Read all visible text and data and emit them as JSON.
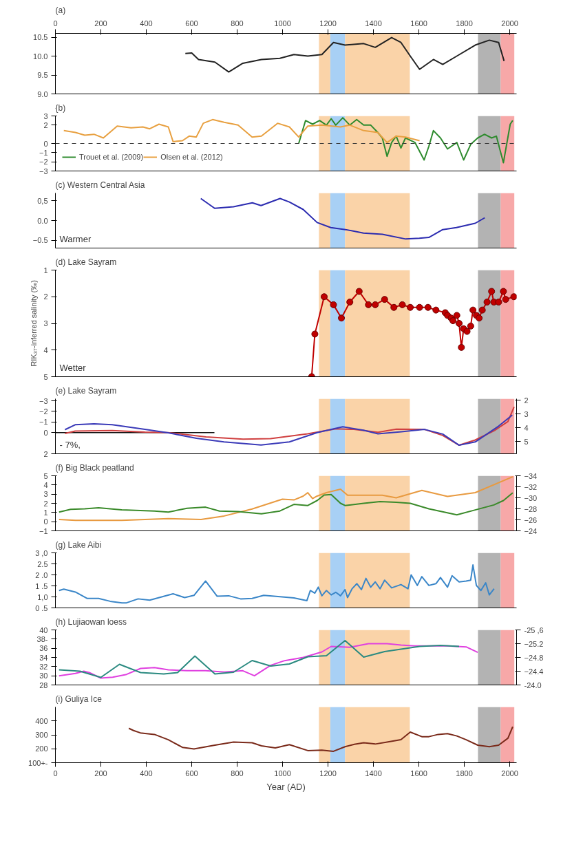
{
  "chart_data": [
    {
      "type": "line",
      "title": "(a)",
      "xlim": [
        0,
        2030
      ],
      "x2lim": [
        0,
        2030
      ],
      "x2ticks": [
        0,
        200,
        400,
        600,
        800,
        1000,
        1200,
        1400,
        1600,
        1800,
        2000
      ],
      "tick_labels": "y",
      "ylim": [
        9.0,
        10.6
      ],
      "yticks": [
        {
          "value": 9.0,
          "label": "9.0"
        },
        9.5,
        {
          "value": 10.0,
          "label": "10.0"
        },
        {
          "value": 10.5,
          "label": "10.5"
        }
      ],
      "grid": false,
      "bands": [
        {
          "axis": "x",
          "from": 1160,
          "to": 1210,
          "color": "#fad3a8"
        },
        {
          "axis": "x",
          "from": 1210,
          "to": 1275,
          "color": "#a8d0f5"
        },
        {
          "axis": "x",
          "from": 1275,
          "to": 1560,
          "color": "#fad3a8"
        },
        {
          "axis": "x",
          "from": 1860,
          "to": 1960,
          "color": "#b3b3b3"
        },
        {
          "axis": "x",
          "from": 1960,
          "to": 2020,
          "color": "#f7a8a8"
        }
      ],
      "series": [
        {
          "color": "#222222",
          "x": [
            572,
            600,
            630,
            702,
            763,
            825,
            907,
            988,
            1050,
            1111,
            1173,
            1224,
            1275,
            1357,
            1408,
            1480,
            1521,
            1562,
            1603,
            1664,
            1705,
            1767,
            1848,
            1910,
            1951,
            1975
          ],
          "values": [
            10.07,
            10.08,
            9.91,
            9.84,
            9.58,
            9.81,
            9.91,
            9.94,
            10.04,
            10.0,
            10.04,
            10.36,
            10.29,
            10.33,
            10.23,
            10.49,
            10.36,
            10.0,
            9.65,
            9.91,
            9.78,
            10.0,
            10.29,
            10.42,
            10.36,
            9.87
          ]
        }
      ]
    },
    {
      "type": "line",
      "title": "{b)",
      "xlim": [
        0,
        2030
      ],
      "tick_labels": "y",
      "ylim": [
        -3,
        3
      ],
      "yticks": [
        -3,
        -2,
        -1,
        0,
        2,
        3
      ],
      "grid": false,
      "legend": "bottom left",
      "ref_lines": [
        {
          "axis": "y",
          "value": 0,
          "line_style": "dashed",
          "color": "#333333"
        }
      ],
      "bands": [
        {
          "axis": "x",
          "from": 1160,
          "to": 1210,
          "color": "#fad3a8"
        },
        {
          "axis": "x",
          "from": 1210,
          "to": 1275,
          "color": "#a8d0f5"
        },
        {
          "axis": "x",
          "from": 1275,
          "to": 1560,
          "color": "#fad3a8"
        },
        {
          "axis": "x",
          "from": 1860,
          "to": 1960,
          "color": "#b3b3b3"
        },
        {
          "axis": "x",
          "from": 1960,
          "to": 2020,
          "color": "#f7a8a8"
        }
      ],
      "series": [
        {
          "name": "Trouet et al. (2009)",
          "color": "#2e8b2e",
          "x": [
            1071,
            1101,
            1132,
            1163,
            1193,
            1214,
            1234,
            1265,
            1296,
            1326,
            1357,
            1388,
            1419,
            1439,
            1460,
            1480,
            1500,
            1521,
            1541,
            1583,
            1623,
            1644,
            1664,
            1695,
            1726,
            1767,
            1797,
            1828,
            1859,
            1889,
            1920,
            1941,
            1972,
            2002,
            2013
          ],
          "values": [
            0,
            2.5,
            2.1,
            2.5,
            2.0,
            2.7,
            2.0,
            2.8,
            2.0,
            2.6,
            2.0,
            2.0,
            1.2,
            0.6,
            -1.4,
            0.1,
            0.8,
            -0.5,
            0.6,
            0.1,
            -1.8,
            -0.3,
            1.4,
            0.6,
            -0.6,
            0.1,
            -1.8,
            -0.1,
            0.6,
            1.0,
            0.6,
            0.8,
            -2.1,
            2.1,
            2.5
          ]
        },
        {
          "name": "Olsen et al. (2012)",
          "color": "#e8a040",
          "x": [
            37,
            88,
            129,
            170,
            211,
            272,
            333,
            385,
            415,
            456,
            497,
            518,
            559,
            589,
            620,
            651,
            692,
            743,
            804,
            866,
            907,
            978,
            1030,
            1071,
            1111,
            1173,
            1255,
            1296,
            1357,
            1419,
            1460,
            1500,
            1541,
            1603
          ],
          "values": [
            1.4,
            1.2,
            0.9,
            1.0,
            0.6,
            1.9,
            1.7,
            1.8,
            1.6,
            2.1,
            1.8,
            0.2,
            0.3,
            0.8,
            0.7,
            2.2,
            2.6,
            2.3,
            2.0,
            0.7,
            0.8,
            2.2,
            1.8,
            0.7,
            1.9,
            2.0,
            1.8,
            2.0,
            1.4,
            1.2,
            0.1,
            0.8,
            0.7,
            0.3
          ]
        }
      ]
    },
    {
      "type": "line",
      "title": "(c) Western Central Asia",
      "xlim": [
        0,
        2030
      ],
      "tick_labels": "y",
      "ylim": [
        -0.7,
        0.7
      ],
      "yticks": [
        {
          "value": 0.5,
          "label": "0,5"
        },
        {
          "value": 0.0,
          "label": "0.0"
        },
        -0.5
      ],
      "grid": false,
      "annotations": [
        "Warmer"
      ],
      "bands": [
        {
          "axis": "x",
          "from": 1160,
          "to": 1210,
          "color": "#fad3a8"
        },
        {
          "axis": "x",
          "from": 1210,
          "to": 1275,
          "color": "#a8d0f5"
        },
        {
          "axis": "x",
          "from": 1275,
          "to": 1560,
          "color": "#fad3a8"
        },
        {
          "axis": "x",
          "from": 1860,
          "to": 1960,
          "color": "#b3b3b3"
        },
        {
          "axis": "x",
          "from": 1960,
          "to": 2020,
          "color": "#f7a8a8"
        }
      ],
      "series": [
        {
          "color": "#2b2bb0",
          "x": [
            640,
            701,
            784,
            867,
            905,
            989,
            1030,
            1091,
            1152,
            1212,
            1277,
            1356,
            1439,
            1542,
            1602,
            1644,
            1705,
            1765,
            1848,
            1890
          ],
          "values": [
            0.56,
            0.31,
            0.35,
            0.45,
            0.38,
            0.56,
            0.47,
            0.28,
            -0.05,
            -0.18,
            -0.23,
            -0.32,
            -0.35,
            -0.47,
            -0.45,
            -0.43,
            -0.23,
            -0.18,
            -0.07,
            0.07
          ]
        }
      ]
    },
    {
      "type": "line",
      "title": "(d) Lake Sayram",
      "ylabel": "RIK₃₇-inferred salinity (‰)",
      "xlim": [
        0,
        2030
      ],
      "tick_labels": "y",
      "ylim": [
        5,
        1
      ],
      "yticks": [
        1,
        2,
        3,
        4,
        5
      ],
      "grid": false,
      "marker": "circle",
      "annotations": [
        "Wetter"
      ],
      "bands": [
        {
          "axis": "x",
          "from": 1160,
          "to": 1210,
          "color": "#fad3a8"
        },
        {
          "axis": "x",
          "from": 1210,
          "to": 1275,
          "color": "#a8d0f5"
        },
        {
          "axis": "x",
          "from": 1275,
          "to": 1560,
          "color": "#fad3a8"
        },
        {
          "axis": "x",
          "from": 1860,
          "to": 1960,
          "color": "#b3b3b3"
        },
        {
          "axis": "x",
          "from": 1960,
          "to": 2020,
          "color": "#f7a8a8"
        }
      ],
      "series": [
        {
          "color": "#c00000",
          "x": [
            1128,
            1142,
            1183,
            1224,
            1259,
            1296,
            1337,
            1378,
            1408,
            1449,
            1490,
            1527,
            1562,
            1603,
            1640,
            1675,
            1716,
            1726,
            1742,
            1750,
            1767,
            1777,
            1787,
            1797,
            1812,
            1828,
            1838,
            1853,
            1865,
            1879,
            1900,
            1920,
            1930,
            1951,
            1972,
            1982,
            2018
          ],
          "values": [
            5.0,
            3.4,
            2.0,
            2.3,
            2.8,
            2.2,
            1.8,
            2.3,
            2.3,
            2.1,
            2.4,
            2.3,
            2.4,
            2.4,
            2.4,
            2.5,
            2.6,
            2.7,
            2.8,
            2.9,
            2.7,
            3.0,
            3.9,
            3.2,
            3.3,
            3.1,
            2.5,
            2.7,
            2.8,
            2.5,
            2.2,
            1.8,
            2.2,
            2.2,
            1.8,
            2.1,
            2.0
          ]
        }
      ]
    },
    {
      "type": "line",
      "title": "(e) Lake Sayram",
      "xlim": [
        0,
        2030
      ],
      "tick_labels": "y",
      "ylim": [
        2.0,
        -3.2
      ],
      "yticks": [
        -3,
        -2,
        -1,
        0,
        2
      ],
      "y2lim": [
        5.9,
        1.9
      ],
      "y2ticks": [
        2,
        3,
        4,
        5
      ],
      "grid": false,
      "annotations": [
        "- 7%,"
      ],
      "bands": [
        {
          "axis": "x",
          "from": 1160,
          "to": 1210,
          "color": "#fad3a8"
        },
        {
          "axis": "x",
          "from": 1210,
          "to": 1275,
          "color": "#a8d0f5"
        },
        {
          "axis": "x",
          "from": 1275,
          "to": 1560,
          "color": "#fad3a8"
        },
        {
          "axis": "x",
          "from": 1860,
          "to": 1960,
          "color": "#b3b3b3"
        },
        {
          "axis": "x",
          "from": 1960,
          "to": 2020,
          "color": "#f7a8a8"
        }
      ],
      "series": [
        {
          "color": "#111111",
          "x": [
            0,
            700
          ],
          "values": [
            0,
            0
          ]
        },
        {
          "color": "#d04040",
          "x": [
            42,
            87,
            250,
            394,
            496,
            663,
            826,
            947,
            1110,
            1235,
            1314,
            1420,
            1500,
            1625,
            1705,
            1777,
            1848,
            1932,
            1992,
            2019
          ],
          "values": [
            0.08,
            -0.14,
            -0.19,
            -0.05,
            0,
            0.41,
            0.62,
            0.57,
            0.11,
            -0.35,
            -0.3,
            -0.03,
            -0.32,
            -0.3,
            0.27,
            1.19,
            0.7,
            -0.19,
            -1.05,
            -2.43
          ]
        },
        {
          "color": "#3a3ab8",
          "axis": "y2",
          "x": [
            42,
            87,
            170,
            250,
            394,
            496,
            621,
            742,
            905,
            1030,
            1152,
            1265,
            1356,
            1420,
            1523,
            1625,
            1705,
            1777,
            1848,
            1951,
            2011
          ],
          "values": [
            4.15,
            3.79,
            3.72,
            3.79,
            4.13,
            4.38,
            4.77,
            5.04,
            5.26,
            5.04,
            4.36,
            3.94,
            4.19,
            4.45,
            4.3,
            4.13,
            4.47,
            5.28,
            5.04,
            3.89,
            3.09
          ]
        }
      ]
    },
    {
      "type": "line",
      "title": "(f) Big Black peatland",
      "xlim": [
        0,
        2030
      ],
      "tick_labels": "y",
      "ylim": [
        -1,
        5
      ],
      "yticks": [
        -1,
        0,
        1,
        2,
        3,
        4,
        5
      ],
      "y2lim": [
        -24,
        -34
      ],
      "y2ticks": [
        -34,
        -32,
        -30,
        -28,
        -26,
        -24
      ],
      "grid": false,
      "bands": [
        {
          "axis": "x",
          "from": 1160,
          "to": 1210,
          "color": "#fad3a8"
        },
        {
          "axis": "x",
          "from": 1210,
          "to": 1275,
          "color": "#a8d0f5"
        },
        {
          "axis": "x",
          "from": 1275,
          "to": 1560,
          "color": "#fad3a8"
        },
        {
          "axis": "x",
          "from": 1860,
          "to": 1960,
          "color": "#b3b3b3"
        },
        {
          "axis": "x",
          "from": 1960,
          "to": 2020,
          "color": "#f7a8a8"
        }
      ],
      "series": [
        {
          "color": "#e89a40",
          "x": [
            16,
            88,
            292,
            497,
            641,
            743,
            866,
            999,
            1050,
            1091,
            1111,
            1132,
            1152,
            1193,
            1255,
            1286,
            1439,
            1500,
            1613,
            1726,
            1848,
            2013
          ],
          "values": [
            0.24,
            0.15,
            0.15,
            0.34,
            0.24,
            0.62,
            1.38,
            2.45,
            2.37,
            2.79,
            3.16,
            2.51,
            2.79,
            3.16,
            3.54,
            2.88,
            2.88,
            2.6,
            3.41,
            2.75,
            3.16,
            4.9
          ]
        },
        {
          "color": "#3a8a2a",
          "axis": "y2",
          "x": [
            16,
            67,
            129,
            190,
            292,
            374,
            436,
            497,
            579,
            661,
            722,
            804,
            907,
            988,
            1050,
            1111,
            1152,
            1183,
            1214,
            1255,
            1275,
            1357,
            1429,
            1500,
            1562,
            1644,
            1767,
            1848,
            1930,
            1972,
            2013
          ],
          "values": [
            -27.4,
            -27.9,
            -28.0,
            -28.2,
            -27.8,
            -27.7,
            -27.6,
            -27.4,
            -28.1,
            -28.3,
            -27.6,
            -27.5,
            -27.1,
            -27.6,
            -28.8,
            -28.6,
            -29.5,
            -30.5,
            -30.6,
            -29.0,
            -28.6,
            -29.0,
            -29.3,
            -29.2,
            -29.0,
            -28.0,
            -26.9,
            -27.8,
            -28.7,
            -29.5,
            -30.9
          ]
        }
      ]
    },
    {
      "type": "line",
      "title": "(g) Lake Aibi",
      "xlim": [
        0,
        2030
      ],
      "tick_labels": "y",
      "ylim": [
        0.5,
        3.0
      ],
      "yticks": [
        {
          "value": 0.5,
          "label": "0 .5"
        },
        {
          "value": 1.0,
          "label": "1,0"
        },
        {
          "value": 1.5,
          "label": "1 .5"
        },
        {
          "value": 2.0,
          "label": "2 .0"
        },
        {
          "value": 2.5,
          "label": "2.5"
        },
        {
          "value": 3.0,
          "label": "3 ,0"
        }
      ],
      "grid": false,
      "bands": [
        {
          "axis": "x",
          "from": 1160,
          "to": 1210,
          "color": "#fad3a8"
        },
        {
          "axis": "x",
          "from": 1210,
          "to": 1275,
          "color": "#a8d0f5"
        },
        {
          "axis": "x",
          "from": 1275,
          "to": 1560,
          "color": "#fad3a8"
        },
        {
          "axis": "x",
          "from": 1860,
          "to": 1960,
          "color": "#b3b3b3"
        },
        {
          "axis": "x",
          "from": 1960,
          "to": 2020,
          "color": "#f7a8a8"
        }
      ],
      "series": [
        {
          "color": "#3a86c8",
          "x": [
            16,
            37,
            88,
            139,
            190,
            241,
            293,
            313,
            364,
            415,
            518,
            569,
            610,
            661,
            712,
            763,
            815,
            866,
            917,
            989,
            1050,
            1107,
            1122,
            1142,
            1157,
            1173,
            1193,
            1214,
            1234,
            1255,
            1275,
            1286,
            1306,
            1327,
            1347,
            1367,
            1388,
            1408,
            1429,
            1449,
            1480,
            1521,
            1552,
            1566,
            1593,
            1613,
            1644,
            1675,
            1695,
            1726,
            1746,
            1777,
            1808,
            1828,
            1838,
            1853,
            1873,
            1894,
            1910,
            1931
          ],
          "values": [
            1.29,
            1.35,
            1.22,
            0.93,
            0.93,
            0.8,
            0.73,
            0.73,
            0.91,
            0.85,
            1.14,
            0.97,
            1.07,
            1.72,
            1.03,
            1.05,
            0.91,
            0.93,
            1.07,
            1.01,
            0.95,
            0.83,
            1.29,
            1.17,
            1.44,
            1.05,
            1.29,
            1.09,
            1.21,
            1.05,
            1.33,
            0.97,
            1.37,
            1.6,
            1.33,
            1.84,
            1.44,
            1.68,
            1.37,
            1.76,
            1.41,
            1.56,
            1.37,
            2.0,
            1.52,
            1.92,
            1.52,
            1.6,
            1.88,
            1.44,
            1.96,
            1.68,
            1.72,
            1.76,
            2.45,
            1.52,
            1.29,
            1.64,
            1.09,
            1.37
          ]
        }
      ]
    },
    {
      "type": "line",
      "title": "(h) Lujiaowan loess",
      "xlim": [
        0,
        2030
      ],
      "tick_labels": "y",
      "ylim": [
        28,
        40
      ],
      "yticks": [
        28,
        30,
        32,
        34,
        36,
        {
          "value": 38,
          "label": "38-"
        },
        40
      ],
      "y2lim": [
        -24.0,
        -25.6
      ],
      "y2ticks": [
        {
          "value": -24.0,
          "label": "-24.0"
        },
        -24.4,
        -24.8,
        -25.2,
        {
          "value": -25.6,
          "label": "-25 ,6"
        }
      ],
      "grid": false,
      "bands": [
        {
          "axis": "x",
          "from": 1160,
          "to": 1210,
          "color": "#fad3a8"
        },
        {
          "axis": "x",
          "from": 1210,
          "to": 1275,
          "color": "#a8d0f5"
        },
        {
          "axis": "x",
          "from": 1275,
          "to": 1560,
          "color": "#fad3a8"
        },
        {
          "axis": "x",
          "from": 1860,
          "to": 1960,
          "color": "#b3b3b3"
        },
        {
          "axis": "x",
          "from": 1960,
          "to": 2020,
          "color": "#f7a8a8"
        }
      ],
      "series": [
        {
          "color": "#e040e0",
          "x": [
            16,
            88,
            125,
            149,
            200,
            252,
            313,
            375,
            436,
            497,
            579,
            661,
            743,
            825,
            876,
            948,
            1009,
            1091,
            1173,
            1214,
            1296,
            1378,
            1460,
            1521,
            1582,
            1726,
            1808,
            1859
          ],
          "values": [
            30.0,
            30.5,
            31.0,
            30.7,
            29.5,
            29.7,
            30.3,
            31.6,
            31.8,
            31.3,
            31.1,
            31.1,
            30.8,
            31.1,
            30.0,
            32.3,
            33.3,
            34.0,
            35.2,
            36.4,
            36.2,
            37.0,
            37.0,
            36.7,
            36.5,
            36.5,
            36.3,
            35.1
          ]
        },
        {
          "color": "#2a8a80",
          "axis": "y2",
          "x": [
            16,
            108,
            200,
            282,
            375,
            477,
            538,
            614,
            702,
            784,
            866,
            948,
            1030,
            1111,
            1193,
            1275,
            1357,
            1449,
            1603,
            1695,
            1777
          ],
          "values": [
            -24.44,
            -24.4,
            -24.22,
            -24.6,
            -24.36,
            -24.32,
            -24.36,
            -24.84,
            -24.32,
            -24.37,
            -24.71,
            -24.55,
            -24.61,
            -24.82,
            -24.85,
            -25.29,
            -24.81,
            -24.97,
            -25.12,
            -25.15,
            -25.12
          ]
        }
      ]
    },
    {
      "type": "line",
      "title": "(i) Guliya Ice",
      "xlabel": "Year (AD)",
      "xlim": [
        0,
        2030
      ],
      "xticks": [
        0,
        200,
        400,
        600,
        800,
        1000,
        1200,
        1400,
        1600,
        1800,
        2000
      ],
      "ylim": [
        100,
        500
      ],
      "yticks": [
        {
          "value": 100,
          "label": "100+-"
        },
        200,
        300,
        400
      ],
      "grid": false,
      "bands": [
        {
          "axis": "x",
          "from": 1160,
          "to": 1210,
          "color": "#fad3a8"
        },
        {
          "axis": "x",
          "from": 1210,
          "to": 1275,
          "color": "#a8d0f5"
        },
        {
          "axis": "x",
          "from": 1275,
          "to": 1560,
          "color": "#fad3a8"
        },
        {
          "axis": "x",
          "from": 1860,
          "to": 1960,
          "color": "#b3b3b3"
        },
        {
          "axis": "x",
          "from": 1960,
          "to": 2020,
          "color": "#f7a8a8"
        }
      ],
      "series": [
        {
          "color": "#7a2a1a",
          "x": [
            323,
            344,
            374,
            436,
            497,
            559,
            610,
            702,
            784,
            866,
            907,
            968,
            1030,
            1111,
            1173,
            1224,
            1275,
            1316,
            1357,
            1408,
            1460,
            1521,
            1562,
            1613,
            1644,
            1685,
            1726,
            1767,
            1808,
            1859,
            1910,
            1951,
            1992,
            2013
          ],
          "values": [
            347,
            331,
            314,
            303,
            265,
            210,
            199,
            226,
            248,
            243,
            221,
            206,
            230,
            187,
            190,
            182,
            215,
            232,
            243,
            234,
            248,
            265,
            320,
            287,
            287,
            303,
            309,
            292,
            265,
            226,
            215,
            226,
            276,
            358
          ]
        }
      ]
    }
  ]
}
